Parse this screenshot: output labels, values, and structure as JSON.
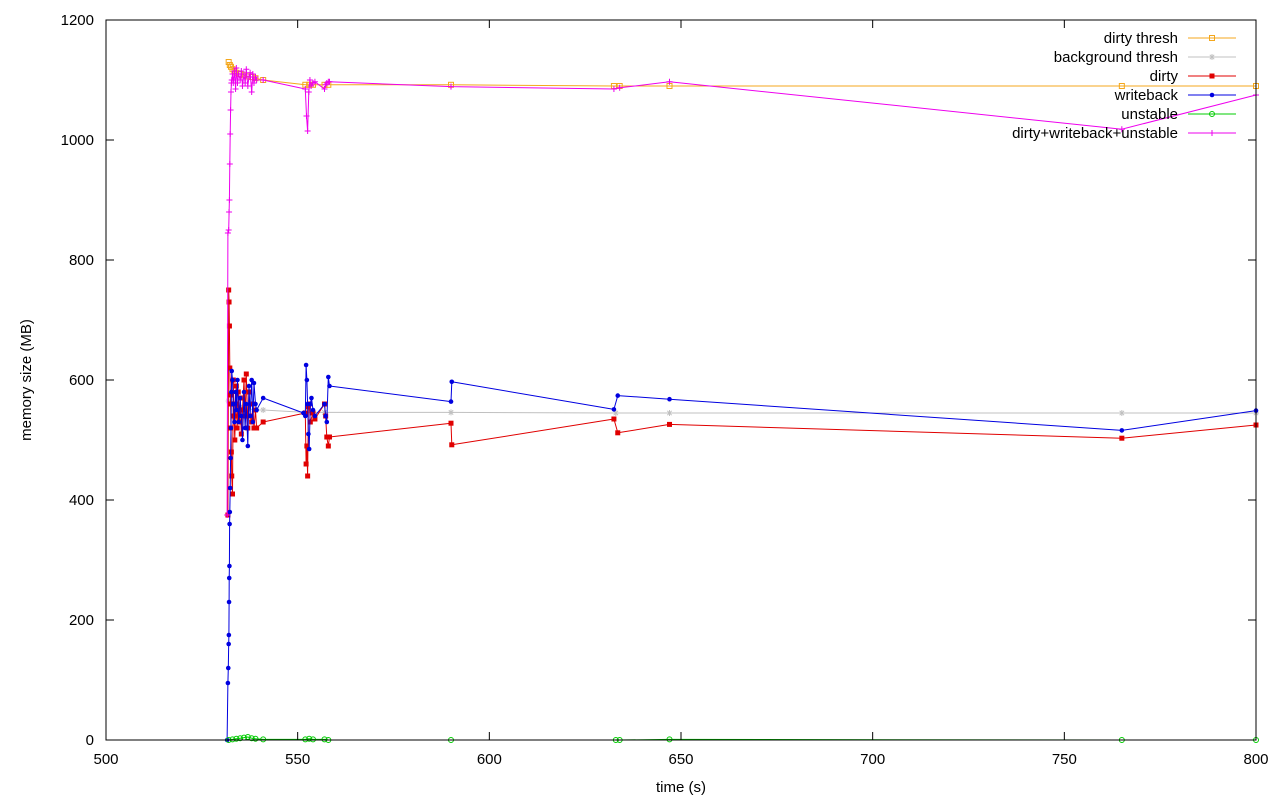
{
  "chart_data": {
    "type": "line",
    "title": "",
    "xlabel": "time (s)",
    "ylabel": "memory size (MB)",
    "xlim": [
      500,
      800
    ],
    "ylim": [
      0,
      1200
    ],
    "xticks": [
      500,
      550,
      600,
      650,
      700,
      750,
      800
    ],
    "yticks": [
      0,
      200,
      400,
      600,
      800,
      1000,
      1200
    ],
    "grid": false,
    "legend_position": "top-right",
    "series": [
      {
        "name": "dirty thresh",
        "color": "#f4a71c",
        "marker": "square-open",
        "x": [
          532.0,
          532.3,
          532.6,
          533.0,
          533.5,
          534,
          535,
          536,
          537,
          538,
          539,
          541,
          552,
          553,
          554,
          557,
          558,
          590,
          632.5,
          634,
          647,
          765,
          800
        ],
        "y": [
          1130,
          1125,
          1122,
          1118,
          1115,
          1112,
          1110,
          1108,
          1106,
          1105,
          1103,
          1100,
          1092,
          1092,
          1092,
          1092,
          1092,
          1092,
          1090,
          1090,
          1090,
          1090,
          1090
        ]
      },
      {
        "name": "background thresh",
        "color": "#c0c0c0",
        "marker": "star",
        "x": [
          532.0,
          533,
          535,
          537,
          539,
          541,
          552,
          554,
          557,
          590,
          633,
          647,
          765,
          800
        ],
        "y": [
          565,
          560,
          555,
          552,
          550,
          550,
          546,
          546,
          546,
          546,
          545,
          545,
          545,
          545
        ]
      },
      {
        "name": "dirty",
        "color": "#e00000",
        "marker": "square-filled",
        "x": [
          531.8,
          532.0,
          532.1,
          532.2,
          532.3,
          532.4,
          532.5,
          532.6,
          532.7,
          532.8,
          533.0,
          533.2,
          533.4,
          533.6,
          533.8,
          534.0,
          534.2,
          534.5,
          534.8,
          535.0,
          535.3,
          535.6,
          536.0,
          536.3,
          536.6,
          537.0,
          537.3,
          537.6,
          538.0,
          538.3,
          538.6,
          539.0,
          539.3,
          541.0,
          552.0,
          552.2,
          552.4,
          552.6,
          552.8,
          553.0,
          553.3,
          554.0,
          554.5,
          557.0,
          557.3,
          557.6,
          558.0,
          558.3,
          590.0,
          590.2,
          632.5,
          633.5,
          647.0,
          765.0,
          800.0
        ],
        "y": [
          375,
          750,
          730,
          690,
          620,
          575,
          560,
          520,
          480,
          440,
          410,
          600,
          540,
          500,
          560,
          590,
          520,
          580,
          530,
          570,
          510,
          550,
          600,
          540,
          610,
          520,
          580,
          540,
          530,
          560,
          520,
          550,
          520,
          530,
          545,
          460,
          490,
          440,
          555,
          560,
          530,
          545,
          535,
          560,
          540,
          505,
          490,
          505,
          528,
          492,
          535,
          512,
          526,
          503,
          525
        ]
      },
      {
        "name": "writeback",
        "color": "#0000e0",
        "marker": "circle-filled",
        "x": [
          531.6,
          531.8,
          531.9,
          532.0,
          532.05,
          532.1,
          532.15,
          532.2,
          532.25,
          532.3,
          532.4,
          532.5,
          532.6,
          532.7,
          532.8,
          533.0,
          533.2,
          533.5,
          533.8,
          534.0,
          534.3,
          534.6,
          535.0,
          535.3,
          535.6,
          536.0,
          536.3,
          536.6,
          537.0,
          537.3,
          537.6,
          538.0,
          538.3,
          538.6,
          539.0,
          539.3,
          541.0,
          551.5,
          552.0,
          552.2,
          552.4,
          552.6,
          552.8,
          553.0,
          553.3,
          553.6,
          554.0,
          554.5,
          557.0,
          557.3,
          557.6,
          558.0,
          558.3,
          590.0,
          590.2,
          632.5,
          633.5,
          647.0,
          765.0,
          800.0
        ],
        "y": [
          0,
          95,
          120,
          160,
          175,
          230,
          270,
          290,
          360,
          380,
          420,
          470,
          520,
          580,
          615,
          600,
          560,
          530,
          580,
          550,
          600,
          530,
          570,
          540,
          500,
          580,
          520,
          560,
          490,
          590,
          540,
          600,
          530,
          595,
          560,
          550,
          570,
          545,
          540,
          625,
          600,
          560,
          510,
          485,
          560,
          570,
          550,
          540,
          560,
          540,
          530,
          605,
          590,
          564,
          597,
          551,
          574,
          568,
          516,
          549
        ]
      },
      {
        "name": "unstable",
        "color": "#00cc00",
        "marker": "circle-open",
        "x": [
          532,
          533,
          534,
          535,
          536,
          537,
          538,
          539,
          541,
          552,
          553,
          554,
          557,
          558,
          590,
          633,
          634,
          647,
          765,
          800
        ],
        "y": [
          0,
          1,
          2,
          3,
          4,
          5,
          3,
          2,
          1,
          1,
          2,
          1,
          1,
          0,
          0,
          0,
          0,
          1,
          0,
          0
        ]
      },
      {
        "name": "dirty+writeback+unstable",
        "color": "#ee00ee",
        "marker": "plus",
        "x": [
          531.6,
          531.8,
          532.0,
          532.1,
          532.2,
          532.3,
          532.4,
          532.5,
          532.6,
          532.7,
          532.8,
          533.0,
          533.2,
          533.5,
          533.8,
          534.0,
          534.3,
          534.6,
          535.0,
          535.3,
          535.6,
          536.0,
          536.3,
          536.6,
          537.0,
          537.3,
          537.6,
          538.0,
          538.3,
          538.6,
          539.0,
          539.3,
          541.0,
          552.0,
          552.3,
          552.6,
          552.9,
          553.2,
          553.5,
          554.0,
          554.5,
          557.0,
          557.3,
          557.6,
          558.0,
          558.3,
          590.0,
          632.5,
          634.0,
          647.0,
          765.0,
          800.0
        ],
        "y": [
          375,
          845,
          850,
          880,
          900,
          960,
          1010,
          1050,
          1080,
          1095,
          1100,
          1110,
          1095,
          1115,
          1085,
          1120,
          1095,
          1110,
          1100,
          1115,
          1090,
          1110,
          1095,
          1118,
          1090,
          1105,
          1112,
          1080,
          1110,
          1095,
          1105,
          1100,
          1100,
          1085,
          1040,
          1015,
          1080,
          1100,
          1090,
          1095,
          1097,
          1085,
          1092,
          1095,
          1097,
          1097,
          1089,
          1085,
          1087,
          1097,
          1018,
          1075
        ]
      }
    ]
  }
}
